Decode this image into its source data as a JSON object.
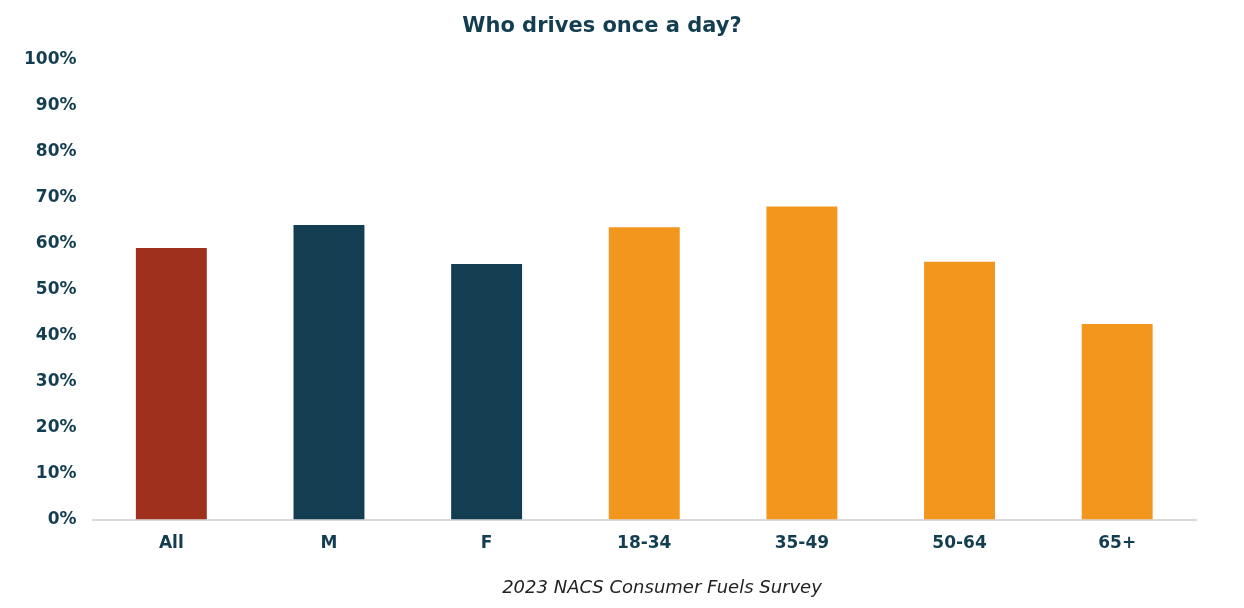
{
  "chart_data": {
    "type": "bar",
    "title": "Who drives once a day?",
    "categories": [
      "All",
      "M",
      "F",
      "18-34",
      "35-49",
      "50-64",
      "65+"
    ],
    "values": [
      59,
      64,
      55.5,
      63.5,
      68,
      56,
      42.5
    ],
    "colors": [
      "#a0301e",
      "#133d51",
      "#133d51",
      "#f2961e",
      "#f2961e",
      "#f2961e",
      "#f2961e"
    ],
    "ylim": [
      0,
      100
    ],
    "yticks": [
      {
        "value": 0,
        "label": "0%"
      },
      {
        "value": 10,
        "label": "10%"
      },
      {
        "value": 20,
        "label": "20%"
      },
      {
        "value": 30,
        "label": "30%"
      },
      {
        "value": 40,
        "label": "40%"
      },
      {
        "value": 50,
        "label": "50%"
      },
      {
        "value": 60,
        "label": "60%"
      },
      {
        "value": 70,
        "label": "70%"
      },
      {
        "value": 80,
        "label": "80%"
      },
      {
        "value": 90,
        "label": "90%"
      },
      {
        "value": 100,
        "label": "100%"
      }
    ],
    "grid": false,
    "legend": false,
    "annotations": [
      "2023 NACS Consumer Fuels Survey"
    ]
  }
}
